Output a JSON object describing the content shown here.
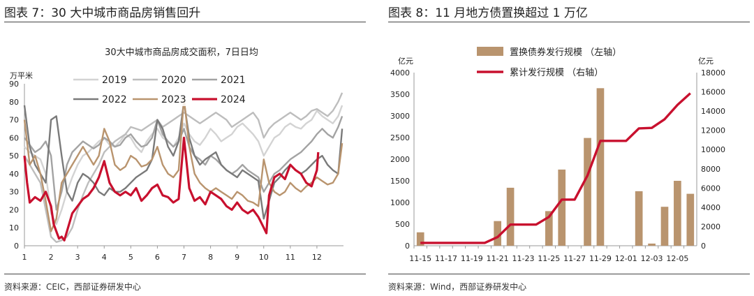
{
  "colors": {
    "y2019": "#d3d3d3",
    "y2020": "#bdbdbd",
    "y2021": "#a3a3a3",
    "y2022": "#7a7a7a",
    "y2023": "#b9946e",
    "y2024": "#c8102e",
    "bar": "#b9946e",
    "cum": "#c8102e",
    "rule": "#444444"
  },
  "left": {
    "figure_title": "图表 7：30 大中城市商品房销售回升",
    "source": "资料来源：CEIC，西部证券研发中心",
    "chart_data": {
      "type": "line",
      "title": "30大中城市商品房成交面积，7日日均",
      "ylabel": "万平米",
      "ylim": [
        0,
        90
      ],
      "yticks": [
        0,
        10,
        20,
        30,
        40,
        50,
        60,
        70,
        80,
        90
      ],
      "xlim": [
        1,
        13
      ],
      "xticks": [
        "1",
        "2",
        "3",
        "4",
        "5",
        "6",
        "7",
        "8",
        "9",
        "10",
        "11",
        "12"
      ],
      "legend_position": "top",
      "series": [
        {
          "name": "2019",
          "color_key": "y2019",
          "x": [
            1,
            1.2,
            1.4,
            1.6,
            1.8,
            2,
            2.2,
            2.4,
            2.6,
            2.8,
            3,
            3.2,
            3.4,
            3.6,
            3.8,
            4,
            4.2,
            4.4,
            4.6,
            4.8,
            5,
            5.2,
            5.4,
            5.6,
            5.8,
            6,
            6.2,
            6.4,
            6.6,
            6.8,
            7,
            7.2,
            7.4,
            7.6,
            7.8,
            8,
            8.2,
            8.4,
            8.6,
            8.8,
            9,
            9.2,
            9.4,
            9.6,
            9.8,
            10,
            10.2,
            10.4,
            10.6,
            10.8,
            11,
            11.2,
            11.4,
            11.6,
            11.8,
            12,
            12.2,
            12.4,
            12.6,
            12.8,
            12.95
          ],
          "y": [
            55,
            52,
            50,
            48,
            40,
            18,
            12,
            20,
            30,
            38,
            45,
            50,
            52,
            55,
            58,
            60,
            56,
            55,
            58,
            62,
            60,
            55,
            52,
            58,
            62,
            65,
            60,
            58,
            55,
            60,
            68,
            62,
            58,
            56,
            60,
            65,
            62,
            58,
            60,
            62,
            66,
            68,
            65,
            62,
            58,
            50,
            55,
            60,
            62,
            66,
            68,
            66,
            65,
            68,
            70,
            75,
            72,
            70,
            68,
            72,
            78
          ]
        },
        {
          "name": "2020",
          "color_key": "y2020",
          "x": [
            1,
            1.2,
            1.4,
            1.6,
            1.8,
            2,
            2.2,
            2.4,
            2.6,
            2.8,
            3,
            3.2,
            3.4,
            3.6,
            3.8,
            4,
            4.2,
            4.4,
            4.6,
            4.8,
            5,
            5.2,
            5.4,
            5.6,
            5.8,
            6,
            6.2,
            6.4,
            6.6,
            6.8,
            7,
            7.2,
            7.4,
            7.6,
            7.8,
            8,
            8.2,
            8.4,
            8.6,
            8.8,
            9,
            9.2,
            9.4,
            9.6,
            9.8,
            10,
            10.2,
            10.4,
            10.6,
            10.8,
            11,
            11.2,
            11.4,
            11.6,
            11.8,
            12,
            12.2,
            12.4,
            12.6,
            12.8,
            12.95
          ],
          "y": [
            50,
            45,
            40,
            35,
            20,
            5,
            2,
            3,
            5,
            10,
            20,
            28,
            35,
            40,
            45,
            52,
            55,
            58,
            60,
            62,
            66,
            65,
            64,
            66,
            68,
            70,
            66,
            68,
            70,
            72,
            74,
            72,
            70,
            68,
            70,
            72,
            74,
            72,
            70,
            66,
            68,
            70,
            72,
            74,
            70,
            60,
            65,
            68,
            70,
            72,
            74,
            72,
            70,
            72,
            75,
            76,
            74,
            72,
            75,
            80,
            85
          ]
        },
        {
          "name": "2021",
          "color_key": "y2021",
          "x": [
            1,
            1.2,
            1.4,
            1.6,
            1.8,
            2,
            2.2,
            2.4,
            2.6,
            2.8,
            3,
            3.2,
            3.4,
            3.6,
            3.8,
            4,
            4.2,
            4.4,
            4.6,
            4.8,
            5,
            5.2,
            5.4,
            5.6,
            5.8,
            6,
            6.2,
            6.4,
            6.6,
            6.8,
            7,
            7.2,
            7.4,
            7.6,
            7.8,
            8,
            8.2,
            8.4,
            8.6,
            8.8,
            9,
            9.2,
            9.4,
            9.6,
            9.8,
            10,
            10.2,
            10.4,
            10.6,
            10.8,
            11,
            11.2,
            11.4,
            11.6,
            11.8,
            12,
            12.2,
            12.4,
            12.6,
            12.8,
            12.95
          ],
          "y": [
            60,
            56,
            52,
            54,
            58,
            50,
            20,
            30,
            45,
            52,
            55,
            58,
            56,
            54,
            56,
            60,
            58,
            55,
            56,
            60,
            62,
            58,
            55,
            56,
            60,
            70,
            62,
            58,
            55,
            58,
            65,
            55,
            50,
            48,
            45,
            50,
            48,
            45,
            42,
            40,
            42,
            45,
            42,
            40,
            38,
            30,
            35,
            40,
            42,
            45,
            48,
            50,
            52,
            55,
            58,
            62,
            65,
            62,
            60,
            66,
            72
          ]
        },
        {
          "name": "2022",
          "color_key": "y2022",
          "x": [
            1,
            1.2,
            1.4,
            1.6,
            1.8,
            2,
            2.2,
            2.4,
            2.6,
            2.8,
            3,
            3.2,
            3.4,
            3.6,
            3.8,
            4,
            4.2,
            4.4,
            4.6,
            4.8,
            5,
            5.2,
            5.4,
            5.6,
            5.8,
            6,
            6.2,
            6.4,
            6.6,
            6.8,
            7,
            7.2,
            7.4,
            7.6,
            7.8,
            8,
            8.2,
            8.4,
            8.6,
            8.8,
            9,
            9.2,
            9.4,
            9.6,
            9.8,
            10,
            10.2,
            10.4,
            10.6,
            10.8,
            11,
            11.2,
            11.4,
            11.6,
            11.8,
            12,
            12.2,
            12.4,
            12.6,
            12.8,
            12.95
          ],
          "y": [
            78,
            55,
            45,
            40,
            35,
            70,
            72,
            50,
            30,
            25,
            35,
            40,
            38,
            35,
            30,
            28,
            32,
            30,
            30,
            32,
            35,
            38,
            40,
            42,
            48,
            70,
            65,
            55,
            50,
            58,
            80,
            60,
            50,
            45,
            48,
            50,
            52,
            45,
            42,
            40,
            38,
            42,
            40,
            38,
            36,
            15,
            25,
            35,
            38,
            42,
            45,
            42,
            40,
            42,
            45,
            48,
            50,
            45,
            42,
            40,
            65
          ]
        },
        {
          "name": "2023",
          "color_key": "y2023",
          "x": [
            1,
            1.2,
            1.4,
            1.6,
            1.8,
            2,
            2.2,
            2.4,
            2.6,
            2.8,
            3,
            3.2,
            3.4,
            3.6,
            3.8,
            4,
            4.2,
            4.4,
            4.6,
            4.8,
            5,
            5.2,
            5.4,
            5.6,
            5.8,
            6,
            6.2,
            6.4,
            6.6,
            6.8,
            7,
            7.2,
            7.4,
            7.6,
            7.8,
            8,
            8.2,
            8.4,
            8.6,
            8.8,
            9,
            9.2,
            9.4,
            9.6,
            9.8,
            10,
            10.2,
            10.4,
            10.6,
            10.8,
            11,
            11.2,
            11.4,
            11.6,
            11.8,
            12,
            12.2,
            12.4,
            12.6,
            12.8,
            12.95
          ],
          "y": [
            70,
            45,
            50,
            40,
            25,
            8,
            15,
            35,
            40,
            45,
            50,
            55,
            50,
            45,
            50,
            65,
            58,
            45,
            42,
            44,
            50,
            48,
            44,
            45,
            48,
            55,
            45,
            40,
            38,
            42,
            82,
            55,
            40,
            35,
            32,
            30,
            32,
            30,
            28,
            26,
            30,
            28,
            25,
            24,
            22,
            48,
            35,
            30,
            28,
            30,
            35,
            32,
            30,
            33,
            35,
            38,
            36,
            34,
            35,
            40,
            57
          ]
        },
        {
          "name": "2024",
          "color_key": "y2024",
          "x": [
            1,
            1.1,
            1.2,
            1.4,
            1.6,
            1.8,
            2,
            2.1,
            2.2,
            2.3,
            2.4,
            2.5,
            2.6,
            2.8,
            3,
            3.2,
            3.4,
            3.6,
            3.8,
            4,
            4.2,
            4.4,
            4.6,
            4.8,
            5,
            5.2,
            5.4,
            5.6,
            5.8,
            6,
            6.2,
            6.4,
            6.6,
            6.8,
            7,
            7.2,
            7.4,
            7.6,
            7.8,
            8,
            8.2,
            8.4,
            8.6,
            8.8,
            9,
            9.2,
            9.4,
            9.6,
            9.8,
            10,
            10.1,
            10.2,
            10.4,
            10.6,
            10.8,
            11,
            11.2,
            11.4,
            11.6,
            11.8,
            12,
            12.05
          ],
          "y": [
            50,
            35,
            24,
            27,
            25,
            30,
            22,
            12,
            8,
            4,
            5,
            3,
            8,
            18,
            22,
            26,
            28,
            32,
            38,
            47,
            35,
            30,
            28,
            30,
            28,
            32,
            25,
            28,
            32,
            34,
            28,
            27,
            24,
            26,
            60,
            32,
            25,
            27,
            23,
            30,
            28,
            26,
            22,
            20,
            24,
            20,
            18,
            20,
            16,
            10,
            7,
            28,
            38,
            40,
            37,
            45,
            42,
            40,
            35,
            33,
            42,
            52
          ]
        }
      ]
    }
  },
  "right": {
    "figure_title": "图表 8：11 月地方债置换超过 1 万亿",
    "source": "资料来源：Wind，西部证券研发中心",
    "chart_data": {
      "type": "bar",
      "ylabel_left": "亿元",
      "ylabel_right": "亿元",
      "ylim_left": [
        0,
        4000
      ],
      "ylim_right": [
        0,
        18000
      ],
      "yticks_left": [
        0,
        500,
        1000,
        1500,
        2000,
        2500,
        3000,
        3500,
        4000
      ],
      "yticks_right": [
        0,
        2000,
        4000,
        6000,
        8000,
        10000,
        12000,
        14000,
        16000,
        18000
      ],
      "legend_position": "top",
      "dates": [
        "11-15",
        "11-16",
        "11-17",
        "11-18",
        "11-19",
        "11-20",
        "11-21",
        "11-22",
        "11-23",
        "11-24",
        "11-25",
        "11-26",
        "11-27",
        "11-28",
        "11-29",
        "11-30",
        "12-01",
        "12-02",
        "12-03",
        "12-04",
        "12-05",
        "12-06"
      ],
      "tick_labels": [
        "11-15",
        "11-17",
        "11-19",
        "11-21",
        "11-23",
        "11-25",
        "11-27",
        "11-29",
        "12-01",
        "12-03",
        "12-05"
      ],
      "series": [
        {
          "name": "置换债券发行规模 （左轴）",
          "kind": "bar",
          "axis": "left",
          "color_key": "bar",
          "values": [
            310,
            0,
            0,
            0,
            0,
            0,
            570,
            1340,
            0,
            0,
            800,
            1760,
            0,
            2490,
            3640,
            0,
            0,
            1260,
            50,
            900,
            1500,
            1200
          ]
        },
        {
          "name": "累计发行规模 （右轴）",
          "kind": "line",
          "axis": "right",
          "color_key": "cum",
          "values": [
            300,
            300,
            300,
            300,
            300,
            300,
            900,
            2200,
            2200,
            2200,
            3000,
            4800,
            4800,
            7300,
            10900,
            10900,
            10900,
            12200,
            12250,
            13150,
            14650,
            15850
          ]
        }
      ]
    }
  }
}
